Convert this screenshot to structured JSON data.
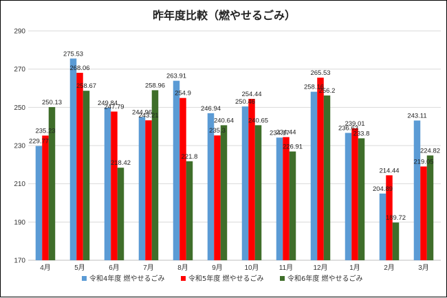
{
  "chart_data": {
    "type": "bar",
    "title": "昨年度比較（燃やせるごみ）",
    "categories": [
      "4月",
      "5月",
      "6月",
      "7月",
      "8月",
      "9月",
      "10月",
      "11月",
      "12月",
      "1月",
      "2月",
      "3月"
    ],
    "series": [
      {
        "name": "令和4年度  燃やせるごみ",
        "color": "#5B9BD5",
        "values": [
          229.77,
          275.53,
          249.84,
          244.96,
          263.91,
          246.94,
          250.46,
          234.17,
          258.16,
          236.63,
          204.89,
          243.11
        ]
      },
      {
        "name": "令和5年度  燃やせるごみ",
        "color": "#FF0000",
        "values": [
          235.23,
          268.06,
          247.79,
          243.21,
          254.9,
          235.3,
          254.44,
          234.44,
          265.53,
          239.01,
          214.44,
          219.05
        ]
      },
      {
        "name": "令和6年度  燃やせるごみ",
        "color": "#3F6E2A",
        "values": [
          250.13,
          258.67,
          218.42,
          258.96,
          221.8,
          240.64,
          240.65,
          226.91,
          256.2,
          233.8,
          189.72,
          224.82
        ]
      }
    ],
    "yticks": [
      170,
      190,
      210,
      230,
      250,
      270,
      290
    ],
    "ylim": [
      170,
      290
    ],
    "grid": true,
    "legend_position": "bottom"
  }
}
